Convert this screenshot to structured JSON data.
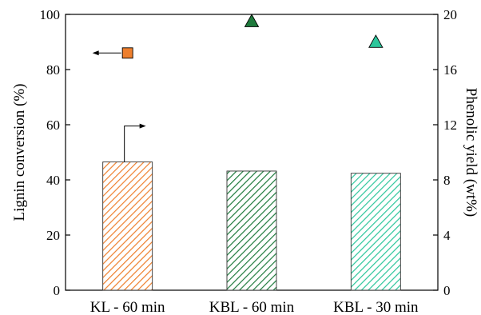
{
  "chart_data": {
    "type": "bar",
    "categories": [
      "KL - 60 min",
      "KBL - 60 min",
      "KBL - 30 min"
    ],
    "bar_series": {
      "axis": "left",
      "values": [
        46.5,
        43.2,
        42.4
      ],
      "colors": [
        "#ee7f2d",
        "#1e7a3c",
        "#2cc69b"
      ],
      "fill_pattern": "diagonal-hatch"
    },
    "marker_series": {
      "axis": "right",
      "values": [
        17.2,
        19.5,
        18.0
      ],
      "markers": [
        "square",
        "triangle",
        "triangle"
      ],
      "colors": [
        "#ee7f2d",
        "#1e7a3c",
        "#2cc69b"
      ]
    },
    "y_left": {
      "label": "Lignin conversion (%)",
      "lim": [
        0,
        100
      ],
      "ticks": [
        "0",
        "20",
        "40",
        "60",
        "80",
        "100"
      ]
    },
    "y_right": {
      "label": "Phenolic yield (wt%)",
      "lim": [
        0,
        20
      ],
      "ticks": [
        "0",
        "4",
        "8",
        "12",
        "16",
        "20"
      ]
    },
    "annotations": [
      {
        "type": "arrow",
        "direction": "left",
        "from_series": "marker",
        "category": 0,
        "meaning": "points to right axis series"
      },
      {
        "type": "arrow",
        "direction": "right",
        "from_series": "bar",
        "category": 0,
        "meaning": "points to right axis"
      }
    ],
    "title": "",
    "xlabel": "",
    "grid": false
  }
}
